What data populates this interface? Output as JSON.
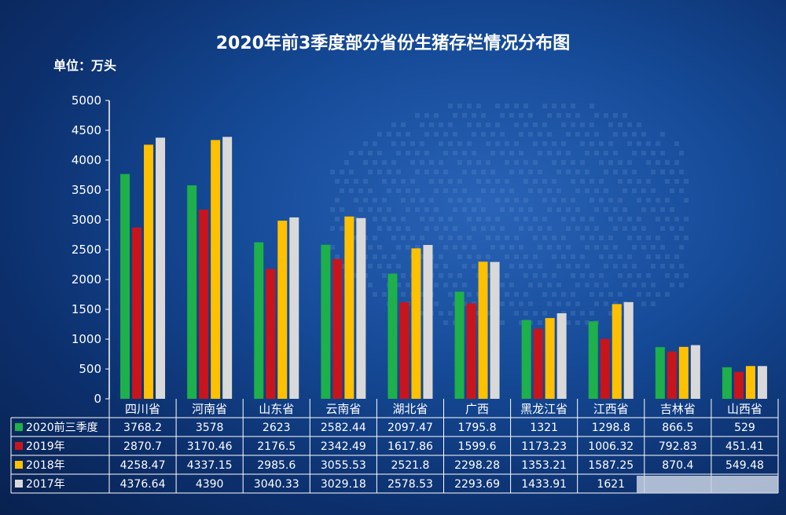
{
  "chart_data": {
    "type": "bar",
    "title": "2020年前3季度部分省份生猪存栏情况分布图",
    "unit_label": "单位：万头",
    "ylim": [
      0,
      5000
    ],
    "yticks": [
      0,
      500,
      1000,
      1500,
      2000,
      2500,
      3000,
      3500,
      4000,
      4500,
      5000
    ],
    "grid": false,
    "legend_placement": "data-table-left",
    "categories": [
      "四川省",
      "河南省",
      "山东省",
      "云南省",
      "湖北省",
      "广西",
      "黑龙江省",
      "江西省",
      "吉林省",
      "山西省"
    ],
    "series": [
      {
        "name": "2020前三季度",
        "color": "#1db04b",
        "values": [
          3768.2,
          3578,
          2623,
          2582.44,
          2097.47,
          1795.8,
          1321,
          1298.8,
          866.5,
          529
        ],
        "labels": [
          "3768.2",
          "3578",
          "2623",
          "2582.44",
          "2097.47",
          "1795.8",
          "1321",
          "1298.8",
          "866.5",
          "529"
        ]
      },
      {
        "name": "2019年",
        "color": "#c8151c",
        "values": [
          2870.7,
          3170.46,
          2176.5,
          2342.49,
          1617.86,
          1599.6,
          1173.23,
          1006.32,
          792.83,
          451.41
        ],
        "labels": [
          "2870.7",
          "3170.46",
          "2176.5",
          "2342.49",
          "1617.86",
          "1599.6",
          "1173.23",
          "1006.32",
          "792.83",
          "451.41"
        ]
      },
      {
        "name": "2018年",
        "color": "#ffc000",
        "values": [
          4258.47,
          4337.15,
          2985.6,
          3055.53,
          2521.8,
          2298.28,
          1353.21,
          1587.25,
          870.4,
          549.48
        ],
        "labels": [
          "4258.47",
          "4337.15",
          "2985.6",
          "3055.53",
          "2521.8",
          "2298.28",
          "1353.21",
          "1587.25",
          "870.4",
          "549.48"
        ]
      },
      {
        "name": "2017年",
        "color": "#d9d9d9",
        "values": [
          4376.64,
          4390,
          3040.33,
          3029.18,
          2578.53,
          2293.69,
          1433.91,
          1621,
          900,
          549
        ],
        "labels": [
          "4376.64",
          "4390",
          "3040.33",
          "3029.18",
          "2578.53",
          "2293.69",
          "1433.91",
          "1621",
          "",
          ""
        ]
      }
    ]
  }
}
